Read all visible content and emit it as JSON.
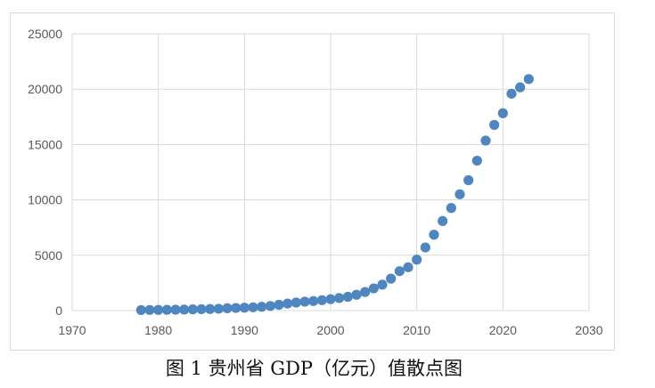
{
  "caption": "图 1 贵州省 GDP（亿元）值散点图",
  "colors": {
    "marker": "#4f86c0",
    "grid": "#d9d9d9",
    "tick_text": "#595959"
  },
  "chart_data": {
    "type": "scatter",
    "title": "",
    "xlabel": "",
    "ylabel": "",
    "xlim": [
      1970,
      2030
    ],
    "ylim": [
      0,
      25000
    ],
    "x_ticks": [
      1970,
      1980,
      1990,
      2000,
      2010,
      2020,
      2030
    ],
    "y_ticks": [
      0,
      5000,
      10000,
      15000,
      20000,
      25000
    ],
    "grid": true,
    "legend": "none",
    "series": [
      {
        "x": [
          1978,
          1979,
          1980,
          1981,
          1982,
          1983,
          1984,
          1985,
          1986,
          1987,
          1988,
          1989,
          1990,
          1991,
          1992,
          1993,
          1994,
          1995,
          1996,
          1997,
          1998,
          1999,
          2000,
          2001,
          2002,
          2003,
          2004,
          2005,
          2006,
          2007,
          2008,
          2009,
          2010,
          2011,
          2012,
          2013,
          2014,
          2015,
          2016,
          2017,
          2018,
          2019,
          2020,
          2021,
          2022,
          2023
        ],
        "y": [
          46,
          56,
          60,
          68,
          80,
          88,
          108,
          124,
          139,
          165,
          212,
          235,
          260,
          295,
          340,
          417,
          524,
          636,
          723,
          805,
          858,
          938,
          1030,
          1133,
          1243,
          1426,
          1678,
          2005,
          2339,
          2884,
          3562,
          3913,
          4602,
          5702,
          6852,
          8087,
          9266,
          10503,
          11777,
          13541,
          15353,
          16769,
          17827,
          19586,
          20165,
          20913
        ]
      }
    ]
  }
}
